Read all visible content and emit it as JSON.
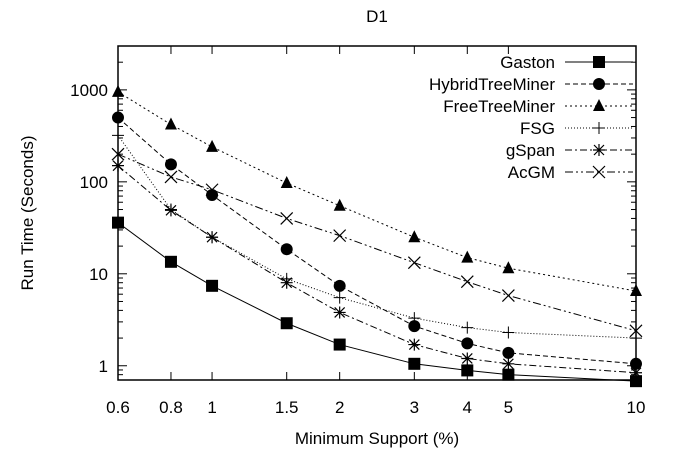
{
  "chart_data": {
    "type": "line",
    "title": "D1",
    "xlabel": "Minimum Support (%)",
    "ylabel": "Run Time (Seconds)",
    "x_scale": "log",
    "y_scale": "log",
    "xlim": [
      0.6,
      10
    ],
    "ylim": [
      0.7,
      3000
    ],
    "x_ticks": [
      "0.6",
      "0.8",
      "1",
      "1.5",
      "2",
      "3",
      "4",
      "5",
      "10"
    ],
    "y_ticks": [
      "1",
      "10",
      "100",
      "1000"
    ],
    "grid": false,
    "legend_position": "top-right",
    "x": [
      0.6,
      0.8,
      1,
      1.5,
      2,
      3,
      4,
      5,
      10
    ],
    "series": [
      {
        "name": "Gaston",
        "marker": "square",
        "dash": "",
        "values": [
          36,
          13.5,
          7.4,
          2.9,
          1.7,
          1.05,
          0.89,
          0.8,
          0.68
        ]
      },
      {
        "name": "HybridTreeMiner",
        "marker": "circle",
        "dash": "5,3",
        "values": [
          500,
          155,
          72,
          18.5,
          7.4,
          2.7,
          1.75,
          1.38,
          1.05
        ]
      },
      {
        "name": "FreeTreeMiner",
        "marker": "triangle",
        "dash": "2,3",
        "values": [
          950,
          420,
          240,
          97,
          55,
          25,
          15,
          11.5,
          6.5
        ]
      },
      {
        "name": "FSG",
        "marker": "plus",
        "dash": "1,2",
        "values": [
          320,
          50,
          25,
          8.8,
          5.5,
          3.3,
          2.6,
          2.3,
          2.0
        ]
      },
      {
        "name": "gSpan",
        "marker": "star",
        "dash": "7,3,2,3",
        "values": [
          150,
          49,
          25,
          8,
          3.8,
          1.7,
          1.2,
          1.05,
          0.84
        ]
      },
      {
        "name": "AcGM",
        "marker": "cross",
        "dash": "8,3,2,3,2,3",
        "values": [
          200,
          113,
          82,
          40,
          26,
          13.2,
          8.2,
          5.8,
          2.4
        ]
      }
    ]
  }
}
